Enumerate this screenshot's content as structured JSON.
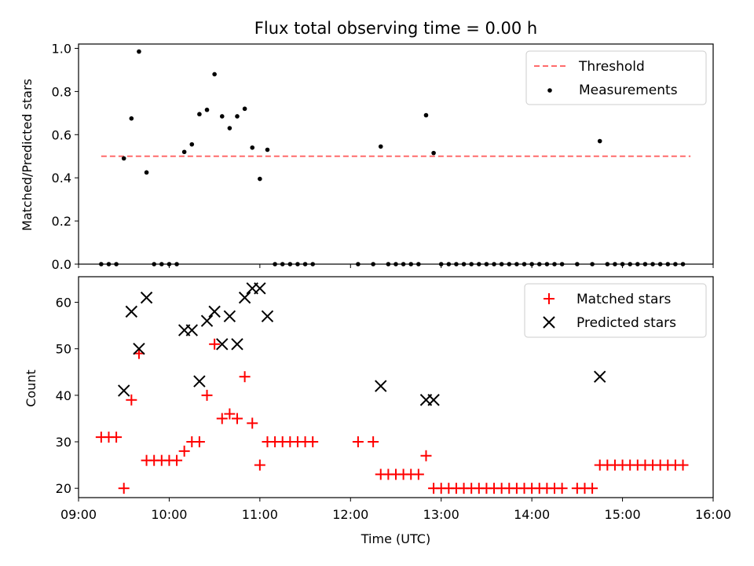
{
  "chart_data": [
    {
      "type": "scatter",
      "title": "Flux total observing time = 0.00 h",
      "ylabel": "Matched/Predicted stars",
      "xlim": [
        "09:00",
        "16:00"
      ],
      "ylim": [
        0,
        1.02
      ],
      "yticks": [
        "0.0",
        "0.2",
        "0.4",
        "0.6",
        "0.8",
        "1.0"
      ],
      "legend_position": "top-right",
      "threshold": {
        "name": "Threshold",
        "y": 0.5,
        "x_range": [
          "09:15",
          "15:45"
        ],
        "color": "#ff6b6b",
        "style": "dashed"
      },
      "series": [
        {
          "name": "Measurements",
          "color": "#000000",
          "marker": "dot",
          "points": [
            [
              "09:15",
              0
            ],
            [
              "09:20",
              0
            ],
            [
              "09:25",
              0
            ],
            [
              "09:30",
              0.49
            ],
            [
              "09:35",
              0.675
            ],
            [
              "09:40",
              0.985
            ],
            [
              "09:45",
              0.425
            ],
            [
              "09:50",
              0
            ],
            [
              "09:55",
              0
            ],
            [
              "10:00",
              0
            ],
            [
              "10:05",
              0
            ],
            [
              "10:10",
              0.52
            ],
            [
              "10:15",
              0.555
            ],
            [
              "10:20",
              0.695
            ],
            [
              "10:25",
              0.715
            ],
            [
              "10:30",
              0.88
            ],
            [
              "10:35",
              0.685
            ],
            [
              "10:40",
              0.63
            ],
            [
              "10:45",
              0.685
            ],
            [
              "10:50",
              0.72
            ],
            [
              "10:55",
              0.54
            ],
            [
              "11:00",
              0.395
            ],
            [
              "11:05",
              0.53
            ],
            [
              "11:10",
              0
            ],
            [
              "11:15",
              0
            ],
            [
              "11:20",
              0
            ],
            [
              "11:25",
              0
            ],
            [
              "11:30",
              0
            ],
            [
              "11:35",
              0
            ],
            [
              "12:05",
              0
            ],
            [
              "12:15",
              0
            ],
            [
              "12:20",
              0.545
            ],
            [
              "12:25",
              0
            ],
            [
              "12:30",
              0
            ],
            [
              "12:35",
              0
            ],
            [
              "12:40",
              0
            ],
            [
              "12:45",
              0
            ],
            [
              "12:50",
              0.69
            ],
            [
              "12:55",
              0.515
            ],
            [
              "13:00",
              0
            ],
            [
              "13:05",
              0
            ],
            [
              "13:10",
              0
            ],
            [
              "13:15",
              0
            ],
            [
              "13:20",
              0
            ],
            [
              "13:25",
              0
            ],
            [
              "13:30",
              0
            ],
            [
              "13:35",
              0
            ],
            [
              "13:40",
              0
            ],
            [
              "13:45",
              0
            ],
            [
              "13:50",
              0
            ],
            [
              "13:55",
              0
            ],
            [
              "14:00",
              0
            ],
            [
              "14:05",
              0
            ],
            [
              "14:10",
              0
            ],
            [
              "14:15",
              0
            ],
            [
              "14:20",
              0
            ],
            [
              "14:30",
              0
            ],
            [
              "14:40",
              0
            ],
            [
              "14:45",
              0.57
            ],
            [
              "14:50",
              0
            ],
            [
              "14:55",
              0
            ],
            [
              "15:00",
              0
            ],
            [
              "15:05",
              0
            ],
            [
              "15:10",
              0
            ],
            [
              "15:15",
              0
            ],
            [
              "15:20",
              0
            ],
            [
              "15:25",
              0
            ],
            [
              "15:30",
              0
            ],
            [
              "15:35",
              0
            ],
            [
              "15:40",
              0
            ]
          ]
        }
      ]
    },
    {
      "type": "scatter",
      "xlabel": "Time (UTC)",
      "ylabel": "Count",
      "xlim": [
        "09:00",
        "16:00"
      ],
      "ylim": [
        18,
        65.5
      ],
      "xticks": [
        "09:00",
        "10:00",
        "11:00",
        "12:00",
        "13:00",
        "14:00",
        "15:00",
        "16:00"
      ],
      "yticks": [
        "20",
        "30",
        "40",
        "50",
        "60"
      ],
      "legend_position": "top-right",
      "series": [
        {
          "name": "Matched stars",
          "color": "#ff0000",
          "marker": "plus",
          "points": [
            [
              "09:15",
              31
            ],
            [
              "09:20",
              31
            ],
            [
              "09:25",
              31
            ],
            [
              "09:30",
              20
            ],
            [
              "09:35",
              39
            ],
            [
              "09:40",
              49
            ],
            [
              "09:45",
              26
            ],
            [
              "09:50",
              26
            ],
            [
              "09:55",
              26
            ],
            [
              "10:00",
              26
            ],
            [
              "10:05",
              26
            ],
            [
              "10:10",
              28
            ],
            [
              "10:15",
              30
            ],
            [
              "10:20",
              30
            ],
            [
              "10:25",
              40
            ],
            [
              "10:30",
              51
            ],
            [
              "10:35",
              35
            ],
            [
              "10:40",
              36
            ],
            [
              "10:45",
              35
            ],
            [
              "10:50",
              44
            ],
            [
              "10:55",
              34
            ],
            [
              "11:00",
              25
            ],
            [
              "11:05",
              30
            ],
            [
              "11:10",
              30
            ],
            [
              "11:15",
              30
            ],
            [
              "11:20",
              30
            ],
            [
              "11:25",
              30
            ],
            [
              "11:30",
              30
            ],
            [
              "11:35",
              30
            ],
            [
              "12:05",
              30
            ],
            [
              "12:15",
              30
            ],
            [
              "12:20",
              23
            ],
            [
              "12:25",
              23
            ],
            [
              "12:30",
              23
            ],
            [
              "12:35",
              23
            ],
            [
              "12:40",
              23
            ],
            [
              "12:45",
              23
            ],
            [
              "12:50",
              27
            ],
            [
              "12:55",
              20
            ],
            [
              "13:00",
              20
            ],
            [
              "13:05",
              20
            ],
            [
              "13:10",
              20
            ],
            [
              "13:15",
              20
            ],
            [
              "13:20",
              20
            ],
            [
              "13:25",
              20
            ],
            [
              "13:30",
              20
            ],
            [
              "13:35",
              20
            ],
            [
              "13:40",
              20
            ],
            [
              "13:45",
              20
            ],
            [
              "13:50",
              20
            ],
            [
              "13:55",
              20
            ],
            [
              "14:00",
              20
            ],
            [
              "14:05",
              20
            ],
            [
              "14:10",
              20
            ],
            [
              "14:15",
              20
            ],
            [
              "14:20",
              20
            ],
            [
              "14:30",
              20
            ],
            [
              "14:35",
              20
            ],
            [
              "14:40",
              20
            ],
            [
              "14:45",
              25
            ],
            [
              "14:50",
              25
            ],
            [
              "14:55",
              25
            ],
            [
              "15:00",
              25
            ],
            [
              "15:05",
              25
            ],
            [
              "15:10",
              25
            ],
            [
              "15:15",
              25
            ],
            [
              "15:20",
              25
            ],
            [
              "15:25",
              25
            ],
            [
              "15:30",
              25
            ],
            [
              "15:35",
              25
            ],
            [
              "15:40",
              25
            ]
          ]
        },
        {
          "name": "Predicted stars",
          "color": "#000000",
          "marker": "x",
          "points": [
            [
              "09:30",
              41
            ],
            [
              "09:35",
              58
            ],
            [
              "09:40",
              50
            ],
            [
              "09:45",
              61
            ],
            [
              "10:10",
              54
            ],
            [
              "10:15",
              54
            ],
            [
              "10:20",
              43
            ],
            [
              "10:25",
              56
            ],
            [
              "10:30",
              58
            ],
            [
              "10:35",
              51
            ],
            [
              "10:40",
              57
            ],
            [
              "10:45",
              51
            ],
            [
              "10:50",
              61
            ],
            [
              "10:55",
              63
            ],
            [
              "11:00",
              63
            ],
            [
              "11:05",
              57
            ],
            [
              "12:20",
              42
            ],
            [
              "12:50",
              39
            ],
            [
              "12:55",
              39
            ],
            [
              "14:45",
              44
            ]
          ]
        }
      ]
    }
  ]
}
